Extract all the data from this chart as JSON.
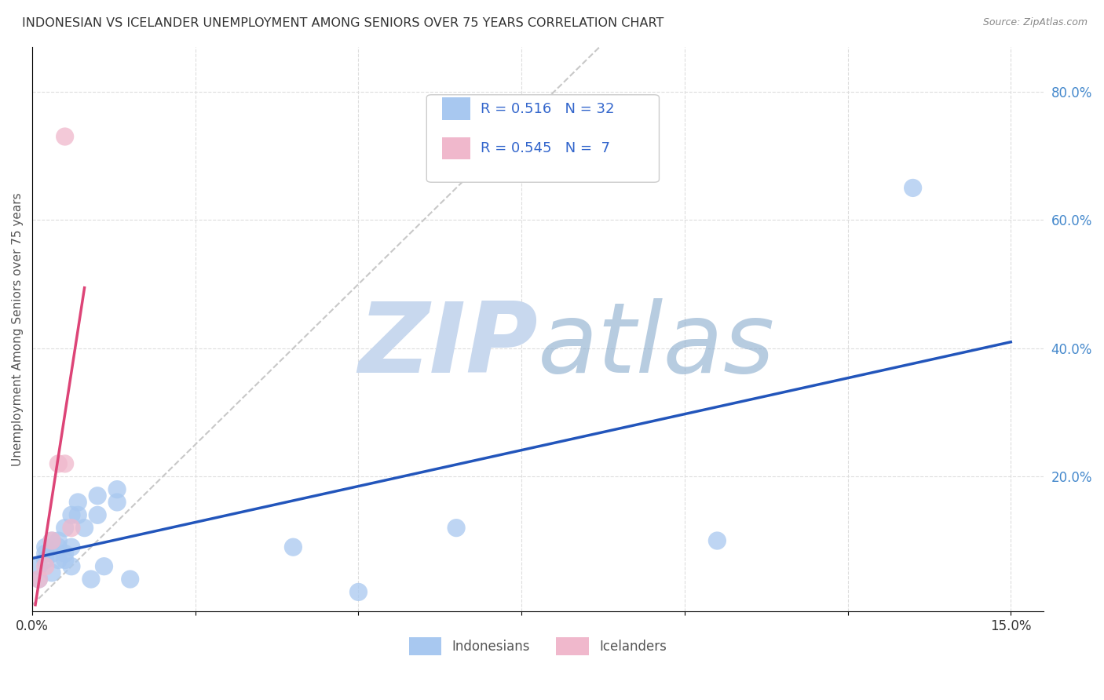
{
  "title": "INDONESIAN VS ICELANDER UNEMPLOYMENT AMONG SENIORS OVER 75 YEARS CORRELATION CHART",
  "source": "Source: ZipAtlas.com",
  "ylabel": "Unemployment Among Seniors over 75 years",
  "xlim": [
    0.0,
    0.155
  ],
  "ylim": [
    -0.01,
    0.87
  ],
  "xticks": [
    0.0,
    0.025,
    0.05,
    0.075,
    0.1,
    0.125,
    0.15
  ],
  "xticklabels": [
    "0.0%",
    "",
    "",
    "",
    "",
    "",
    "15.0%"
  ],
  "yticks_right": [
    0.2,
    0.4,
    0.6,
    0.8
  ],
  "yticklabels_right": [
    "20.0%",
    "40.0%",
    "60.0%",
    "80.0%"
  ],
  "indonesian_x": [
    0.001,
    0.001,
    0.002,
    0.002,
    0.002,
    0.003,
    0.003,
    0.003,
    0.004,
    0.004,
    0.004,
    0.005,
    0.005,
    0.005,
    0.006,
    0.006,
    0.006,
    0.007,
    0.007,
    0.008,
    0.009,
    0.01,
    0.01,
    0.011,
    0.013,
    0.013,
    0.015,
    0.04,
    0.05,
    0.065,
    0.105,
    0.135
  ],
  "indonesian_y": [
    0.04,
    0.06,
    0.07,
    0.08,
    0.09,
    0.05,
    0.08,
    0.1,
    0.07,
    0.09,
    0.1,
    0.07,
    0.08,
    0.12,
    0.06,
    0.09,
    0.14,
    0.14,
    0.16,
    0.12,
    0.04,
    0.14,
    0.17,
    0.06,
    0.16,
    0.18,
    0.04,
    0.09,
    0.02,
    0.12,
    0.1,
    0.65
  ],
  "icelander_x": [
    0.001,
    0.002,
    0.003,
    0.004,
    0.005,
    0.005,
    0.006
  ],
  "icelander_y": [
    0.04,
    0.06,
    0.1,
    0.22,
    0.73,
    0.22,
    0.12
  ],
  "r_indonesian": 0.516,
  "n_indonesian": 32,
  "r_icelander": 0.545,
  "n_icelander": 7,
  "color_indonesian": "#a8c8f0",
  "color_icelander": "#f0b8cc",
  "trendline_indonesian_color": "#2255bb",
  "trendline_icelander_color": "#dd4477",
  "trendline_diagonal_color": "#c8c8c8",
  "watermark_zip_color": "#c8d8ee",
  "watermark_atlas_color": "#88aacc",
  "background_color": "#ffffff",
  "grid_color": "#dddddd",
  "legend_box_color": "#f0f0f0"
}
